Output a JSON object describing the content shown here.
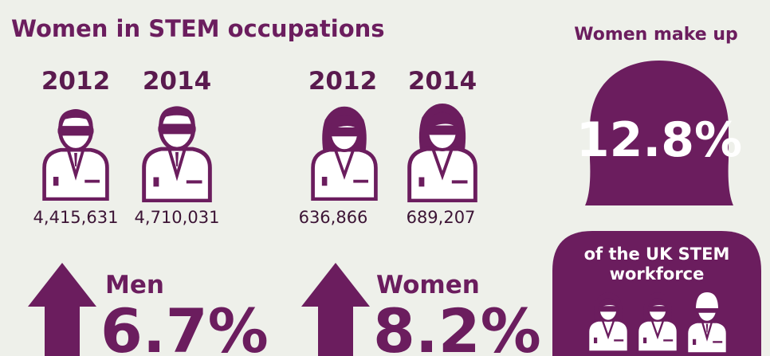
{
  "title": "Women in STEM occupations",
  "men": {
    "years": [
      "2012",
      "2014"
    ],
    "counts": [
      "4,415,631",
      "4,710,031"
    ],
    "label": "Men",
    "change": "6.7%"
  },
  "women": {
    "years": [
      "2012",
      "2014"
    ],
    "counts": [
      "636,866",
      "689,207"
    ],
    "label": "Women",
    "change": "8.2%"
  },
  "side": {
    "heading": "Women make up",
    "share": "12.8%",
    "caption_lines": [
      "of the UK STEM",
      "workforce"
    ]
  }
}
